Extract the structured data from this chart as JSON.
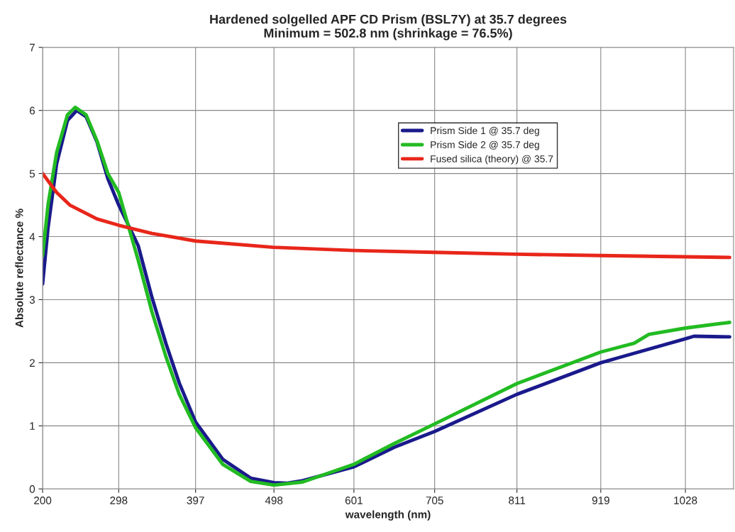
{
  "chart_data": {
    "type": "line",
    "title": "Hardened solgelled APF CD Prism (BSL7Y) at 35.7 degrees\nMinimum = 502.8 nm (shrinkage = 76.5%)",
    "xlabel": "wavelength (nm)",
    "ylabel": "Absolute reflectance %",
    "series": [
      {
        "name": "Prism Side 1 @ 35.7 deg",
        "color": "#1a1a8c",
        "x": [
          200,
          207,
          218,
          232,
          244,
          256,
          270,
          284,
          298,
          323,
          341,
          359,
          376,
          397,
          432,
          468,
          498,
          515,
          535,
          601,
          653,
          705,
          811,
          919,
          942,
          1028,
          1039,
          1085
        ],
        "values": [
          3.25,
          4.14,
          5.15,
          5.84,
          6.0,
          5.9,
          5.5,
          4.92,
          4.5,
          3.86,
          3.03,
          2.3,
          1.68,
          1.06,
          0.47,
          0.17,
          0.1,
          0.09,
          0.13,
          0.35,
          0.66,
          0.91,
          1.5,
          2.0,
          2.08,
          2.38,
          2.42,
          2.41
        ]
      },
      {
        "name": "Prism Side 2 @ 35.7 deg",
        "color": "#22bb22",
        "x": [
          200,
          207,
          218,
          232,
          242,
          256,
          270,
          284,
          298,
          323,
          341,
          359,
          376,
          397,
          432,
          468,
          498,
          535,
          601,
          653,
          705,
          811,
          919,
          962,
          981,
          1028,
          1085
        ],
        "values": [
          3.7,
          4.51,
          5.33,
          5.93,
          6.05,
          5.93,
          5.52,
          5.0,
          4.7,
          3.63,
          2.8,
          2.09,
          1.5,
          0.97,
          0.39,
          0.12,
          0.06,
          0.11,
          0.39,
          0.72,
          1.03,
          1.67,
          2.17,
          2.31,
          2.45,
          2.55,
          2.64
        ]
      },
      {
        "name": "Fused silica (theory) @ 35.7",
        "color": "#e8261a",
        "x": [
          200,
          218,
          235,
          270,
          298,
          341,
          397,
          497,
          601,
          705,
          811,
          919,
          1028,
          1085
        ],
        "values": [
          5.0,
          4.7,
          4.5,
          4.28,
          4.18,
          4.05,
          3.93,
          3.83,
          3.78,
          3.75,
          3.72,
          3.7,
          3.68,
          3.67
        ]
      }
    ],
    "xlim": [
      200,
      1090
    ],
    "xticks": [
      200,
      298,
      397,
      498,
      601,
      705,
      811,
      919,
      1028
    ],
    "ylim": [
      0,
      7
    ],
    "yticks": [
      0,
      1,
      2,
      3,
      4,
      5,
      6,
      7
    ],
    "grid": true,
    "legend": "top",
    "marker": "none",
    "line_style": "solid"
  }
}
